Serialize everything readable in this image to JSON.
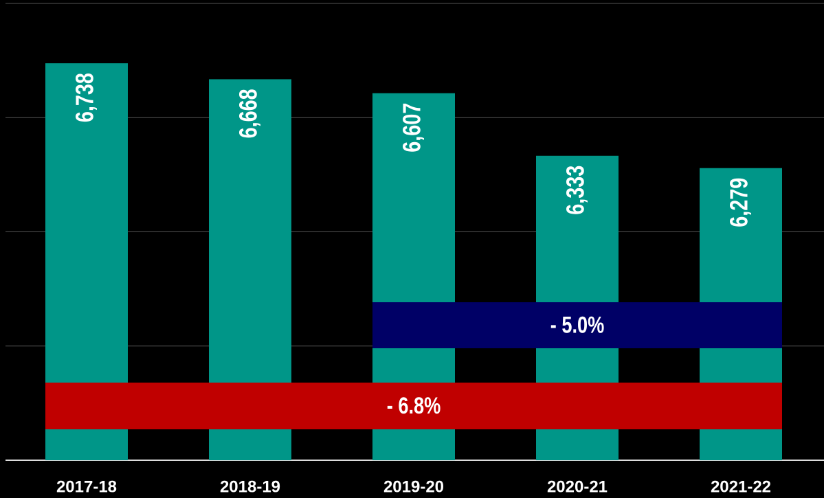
{
  "chart_data": {
    "type": "bar",
    "categories": [
      "2017-18",
      "2018-19",
      "2019-20",
      "2020-21",
      "2021-22"
    ],
    "values": [
      6738,
      6668,
      6607,
      6333,
      6279
    ],
    "value_labels": [
      "6,738",
      "6,668",
      "6,607",
      "6,333",
      "6,279"
    ],
    "color": "#009688",
    "ylim": [
      5000,
      7000
    ],
    "yticks": [
      5000,
      5500,
      6000,
      6500,
      7000
    ],
    "grid": true,
    "annotations": [
      {
        "text": "- 5.0%",
        "color": "#000066"
      },
      {
        "text": "- 6.8%",
        "color": "#c00000"
      }
    ]
  }
}
